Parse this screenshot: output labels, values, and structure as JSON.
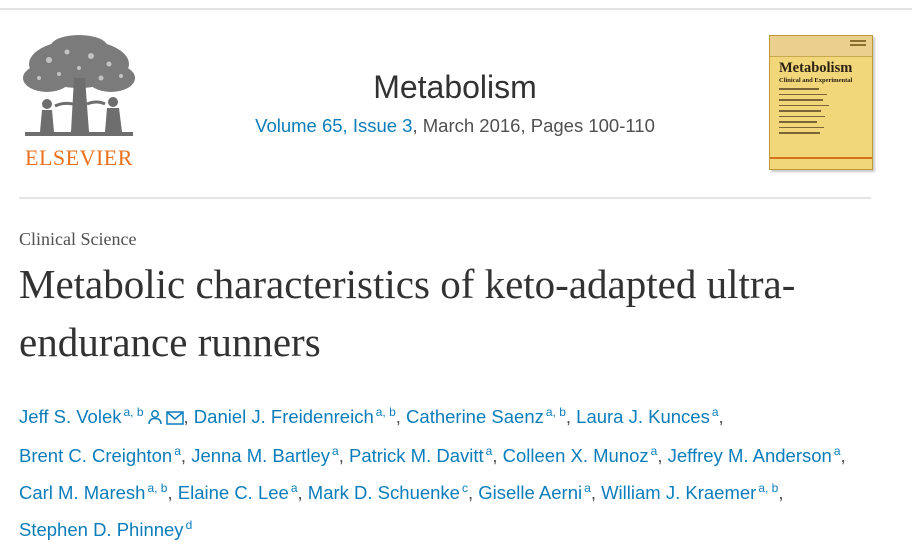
{
  "publisher": {
    "name": "ELSEVIER",
    "logo_icon": "elsevier-tree-icon",
    "brand_color": "#e9711c"
  },
  "journal": {
    "title": "Metabolism",
    "issue_link": "Volume 65, Issue 3",
    "issue_rest": ", March 2016, Pages 100-110",
    "link_color": "#0c7dbb"
  },
  "cover": {
    "title": "Metabolism",
    "subtitle": "Clinical and Experimental",
    "background": "#f2d77a"
  },
  "article": {
    "section": "Clinical Science",
    "title": "Metabolic characteristics of keto-adapted ultra-endurance runners"
  },
  "authors": [
    {
      "name": "Jeff S. Volek",
      "aff": "a, b",
      "icons": [
        "person-icon",
        "envelope-icon"
      ]
    },
    {
      "name": "Daniel J. Freidenreich",
      "aff": "a, b"
    },
    {
      "name": "Catherine Saenz",
      "aff": "a, b"
    },
    {
      "name": "Laura J. Kunces",
      "aff": "a"
    },
    {
      "name": "Brent C. Creighton",
      "aff": "a"
    },
    {
      "name": "Jenna M. Bartley",
      "aff": "a"
    },
    {
      "name": "Patrick M. Davitt",
      "aff": "a"
    },
    {
      "name": "Colleen X. Munoz",
      "aff": "a"
    },
    {
      "name": "Jeffrey M. Anderson",
      "aff": "a"
    },
    {
      "name": "Carl M. Maresh",
      "aff": "a, b"
    },
    {
      "name": "Elaine C. Lee",
      "aff": "a"
    },
    {
      "name": "Mark D. Schuenke",
      "aff": "c"
    },
    {
      "name": "Giselle Aerni",
      "aff": "a"
    },
    {
      "name": "William J. Kraemer",
      "aff": "a, b"
    },
    {
      "name": "Stephen D. Phinney",
      "aff": "d"
    }
  ]
}
